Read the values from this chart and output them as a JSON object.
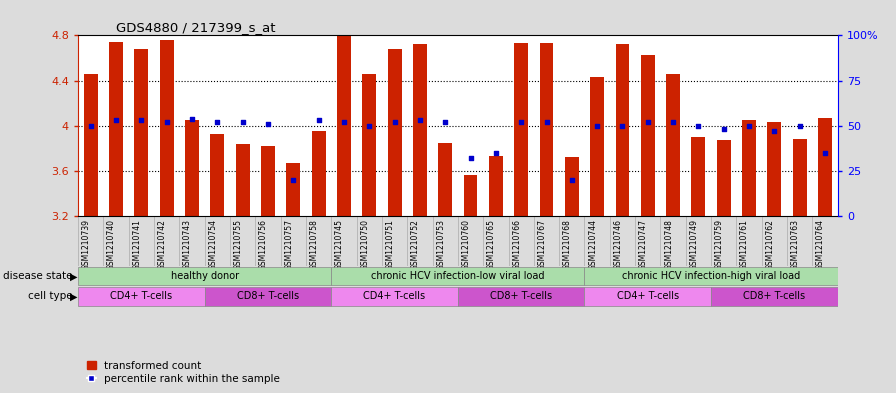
{
  "title": "GDS4880 / 217399_s_at",
  "samples": [
    "GSM1210739",
    "GSM1210740",
    "GSM1210741",
    "GSM1210742",
    "GSM1210743",
    "GSM1210754",
    "GSM1210755",
    "GSM1210756",
    "GSM1210757",
    "GSM1210758",
    "GSM1210745",
    "GSM1210750",
    "GSM1210751",
    "GSM1210752",
    "GSM1210753",
    "GSM1210760",
    "GSM1210765",
    "GSM1210766",
    "GSM1210767",
    "GSM1210768",
    "GSM1210744",
    "GSM1210746",
    "GSM1210747",
    "GSM1210748",
    "GSM1210749",
    "GSM1210759",
    "GSM1210761",
    "GSM1210762",
    "GSM1210763",
    "GSM1210764"
  ],
  "bar_values": [
    4.46,
    4.74,
    4.68,
    4.76,
    4.05,
    3.93,
    3.84,
    3.82,
    3.67,
    3.95,
    4.79,
    4.46,
    4.68,
    4.72,
    3.85,
    3.56,
    3.73,
    4.73,
    4.73,
    3.72,
    4.43,
    4.72,
    4.63,
    4.46,
    3.9,
    3.87,
    4.05,
    4.03,
    3.88,
    4.07
  ],
  "percentile_values": [
    50,
    53,
    53,
    52,
    54,
    52,
    52,
    51,
    20,
    53,
    52,
    50,
    52,
    53,
    52,
    32,
    35,
    52,
    52,
    20,
    50,
    50,
    52,
    52,
    50,
    48,
    50,
    47,
    50,
    35
  ],
  "ymin": 3.2,
  "ymax": 4.8,
  "yticks": [
    3.2,
    3.6,
    4.0,
    4.4,
    4.8
  ],
  "ytick_labels": [
    "3.2",
    "3.6",
    "4",
    "4.4",
    "4.8"
  ],
  "right_yticks_pct": [
    0,
    25,
    50,
    75,
    100
  ],
  "right_ytick_labels": [
    "0",
    "25",
    "50",
    "75",
    "100%"
  ],
  "bar_color": "#CC2200",
  "dot_color": "#0000CC",
  "dot_size": 12,
  "bg_color": "#DCDCDC",
  "plot_bg": "#FFFFFF",
  "label_bg": "#DCDCDC",
  "disease_state_groups": [
    {
      "label": "healthy donor",
      "start": 0,
      "end": 10,
      "color": "#AADDAA"
    },
    {
      "label": "chronic HCV infection-low viral load",
      "start": 10,
      "end": 20,
      "color": "#AADDAA"
    },
    {
      "label": "chronic HCV infection-high viral load",
      "start": 20,
      "end": 30,
      "color": "#AADDAA"
    }
  ],
  "cell_type_groups": [
    {
      "label": "CD4+ T-cells",
      "start": 0,
      "end": 5,
      "color": "#EE88EE"
    },
    {
      "label": "CD8+ T-cells",
      "start": 5,
      "end": 10,
      "color": "#CC55CC"
    },
    {
      "label": "CD4+ T-cells",
      "start": 10,
      "end": 15,
      "color": "#EE88EE"
    },
    {
      "label": "CD8+ T-cells",
      "start": 15,
      "end": 20,
      "color": "#CC55CC"
    },
    {
      "label": "CD4+ T-cells",
      "start": 20,
      "end": 25,
      "color": "#EE88EE"
    },
    {
      "label": "CD8+ T-cells",
      "start": 25,
      "end": 30,
      "color": "#CC55CC"
    }
  ]
}
